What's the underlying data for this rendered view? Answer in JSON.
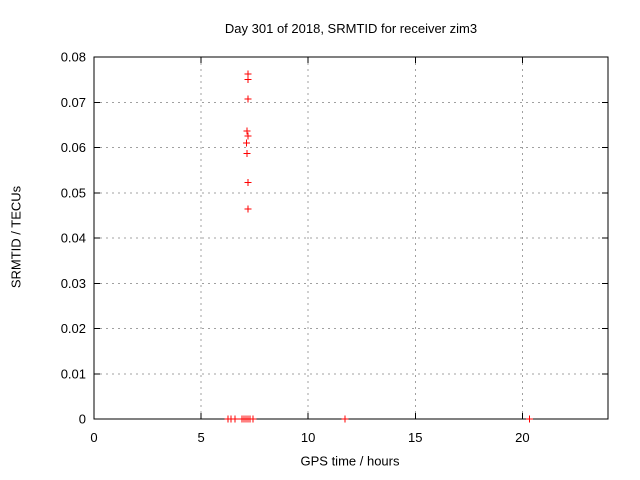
{
  "window": {
    "background": "#ffffff"
  },
  "chart_data": {
    "type": "scatter",
    "title": "Day 301 of 2018, SRMTID for receiver zim3",
    "xlabel": "GPS time / hours",
    "ylabel": "SRMTID / TECUs",
    "xlim": [
      0,
      24
    ],
    "ylim": [
      0,
      0.08
    ],
    "grid": true,
    "legend": "none",
    "marker": "plus",
    "marker_size": 7,
    "colors": {
      "marker": "#ff0000",
      "grid": "#a0a0a0",
      "axis": "#000000",
      "text": "#000000",
      "background": "#ffffff"
    },
    "xticks": [
      {
        "v": 0,
        "label": "0"
      },
      {
        "v": 5,
        "label": "5"
      },
      {
        "v": 10,
        "label": "10"
      },
      {
        "v": 15,
        "label": "15"
      },
      {
        "v": 20,
        "label": "20"
      }
    ],
    "yticks": [
      {
        "v": 0,
        "label": "0"
      },
      {
        "v": 0.01,
        "label": "0.01"
      },
      {
        "v": 0.02,
        "label": "0.02"
      },
      {
        "v": 0.03,
        "label": "0.03"
      },
      {
        "v": 0.04,
        "label": "0.04"
      },
      {
        "v": 0.05,
        "label": "0.05"
      },
      {
        "v": 0.06,
        "label": "0.06"
      },
      {
        "v": 0.07,
        "label": "0.07"
      },
      {
        "v": 0.08,
        "label": "0.08"
      }
    ],
    "points": [
      [
        6.26,
        0
      ],
      [
        6.4,
        0
      ],
      [
        6.58,
        0
      ],
      [
        6.91,
        0
      ],
      [
        7.0,
        0
      ],
      [
        7.1,
        0
      ],
      [
        7.19,
        0
      ],
      [
        7.28,
        0
      ],
      [
        7.42,
        0
      ],
      [
        11.73,
        0
      ],
      [
        20.33,
        0
      ],
      [
        7.18,
        0.0464
      ],
      [
        7.18,
        0.0523
      ],
      [
        7.14,
        0.0587
      ],
      [
        7.11,
        0.061
      ],
      [
        7.19,
        0.0625
      ],
      [
        7.14,
        0.0636
      ],
      [
        7.18,
        0.0707
      ],
      [
        7.2,
        0.075
      ],
      [
        7.19,
        0.0762
      ]
    ]
  }
}
